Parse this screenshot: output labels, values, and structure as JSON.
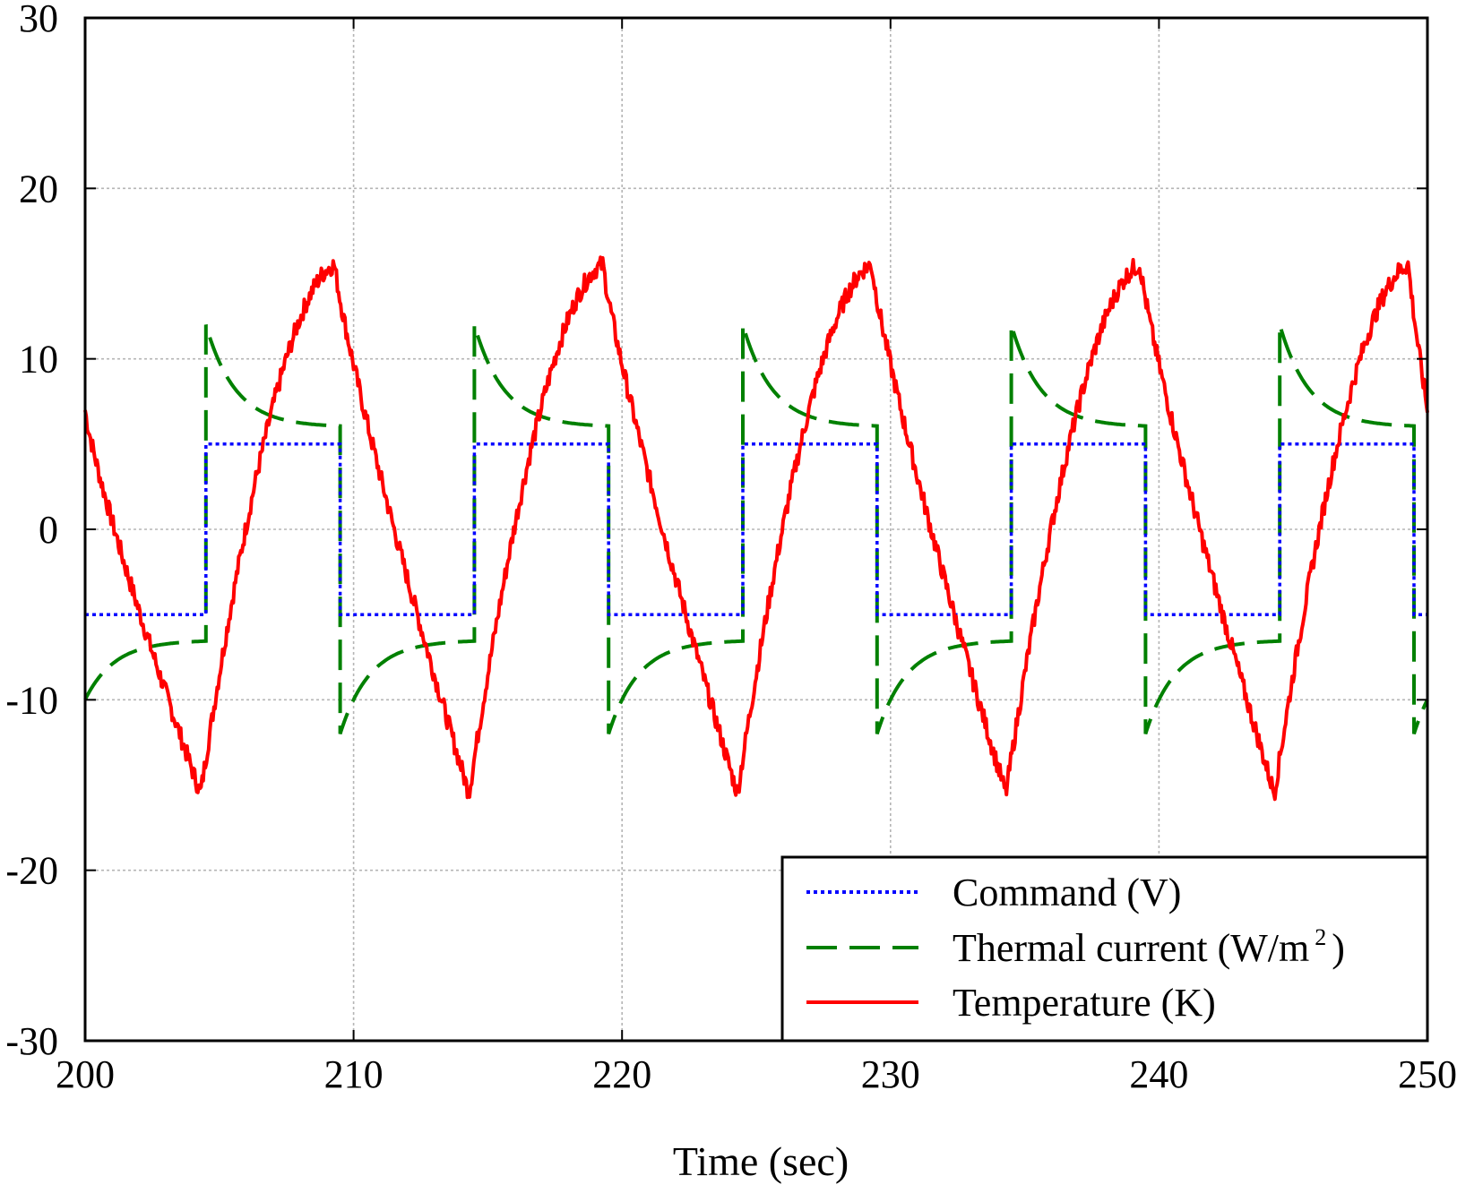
{
  "chart_data": {
    "type": "line",
    "title": "",
    "xlabel": "Time (sec)",
    "ylabel": "",
    "xlim": [
      200,
      250
    ],
    "ylim": [
      -30,
      30
    ],
    "grid": true,
    "xticks": [
      200,
      210,
      220,
      230,
      240,
      250
    ],
    "yticks": [
      -30,
      -20,
      -10,
      0,
      10,
      20,
      30
    ],
    "legend_position": "bottom-right",
    "legend_superscript": "2",
    "legend_close": ")",
    "period": 10,
    "series": [
      {
        "name": "Command (V)",
        "legend_label": "Command (V",
        "color": "#0000ff",
        "style": "dotted",
        "description": "square wave switching between -5 and +5",
        "low": -5,
        "high": 5,
        "rise_times": [
          204.5,
          214.5,
          224.5,
          234.5,
          244.5
        ],
        "fall_times": [
          209.5,
          219.5,
          229.5,
          239.5,
          249.5
        ]
      },
      {
        "name": "Thermal current (W/m2)",
        "legend_label": "Thermal current (W/m",
        "color": "#008000",
        "style": "dashed",
        "description": "jumps to about +12 at each rise and -12 at each fall, then decays toward about +6 / -6.5",
        "peak_high": 12,
        "settle_high": 6,
        "peak_low": -12,
        "settle_low": -6.5
      },
      {
        "name": "Temperature (K)",
        "legend_label": "Temperature (K)",
        "color": "#ff0000",
        "style": "solid",
        "description": "noisy sawtooth between about -15.5 and +15.5",
        "start_value": 7,
        "max": 15.5,
        "min": -15.5,
        "peak_times": [
          209.3,
          219.3,
          229.3,
          239.3,
          249.3
        ],
        "trough_times": [
          204.3,
          214.3,
          224.3,
          234.3,
          244.3
        ]
      }
    ]
  }
}
